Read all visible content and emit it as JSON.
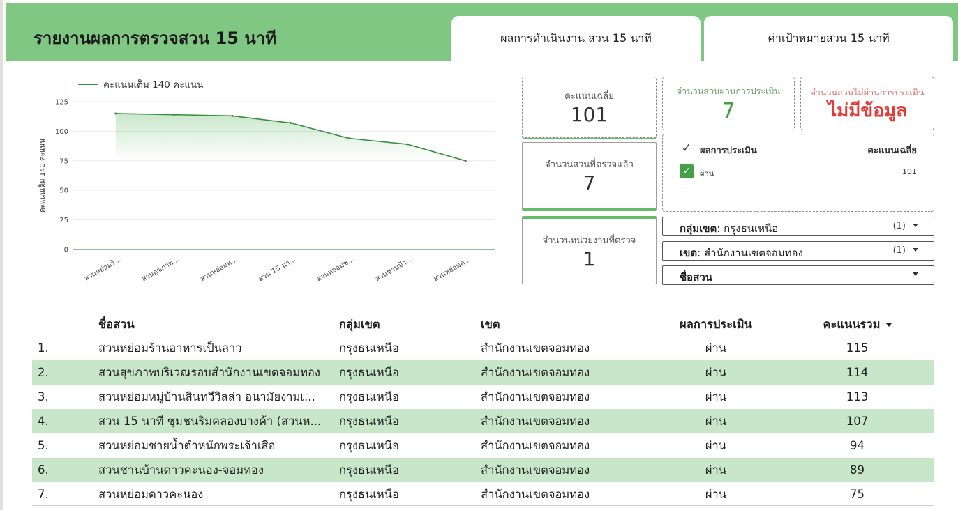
{
  "header": {
    "title": "รายงานผลการตรวจสวน 15 นาที",
    "tabs": [
      {
        "label": "ผลการดำเนินงาน สวน 15 นาที"
      },
      {
        "label": "ค่าเป้าหมายสวน 15 นาที"
      }
    ]
  },
  "colors": {
    "header_bg": "#81c784",
    "line": "#388e3c",
    "row_alt": "#c8e6c9",
    "pass_value": "#43a047",
    "fail_value": "#e53935"
  },
  "chart_data": {
    "type": "area",
    "legend": "คะแนนเต็ม 140 คะแนน",
    "ylabel": "คะแนนเต็ม 140 คะแนน",
    "ylim": [
      0,
      125
    ],
    "yticks": [
      "0",
      "25",
      "50",
      "75",
      "100",
      "125"
    ],
    "categories": [
      "สวนหย่อมร้...",
      "สวนสุขภาพ...",
      "สวนหย่อมห...",
      "สวน 15 นา...",
      "สวนหย่อมช...",
      "สวนชานบ้า...",
      "สวนหย่อมด..."
    ],
    "series": [
      {
        "name": "คะแนนเต็ม 140 คะแนน",
        "values": [
          115,
          114,
          113,
          107,
          94,
          89,
          75
        ]
      }
    ],
    "grid": true,
    "legend_position": "top-left"
  },
  "scorecards": {
    "avg": {
      "label": "คะแนนเฉลี่ย",
      "value": "101"
    },
    "parks_checked": {
      "label": "จำนวนสวนที่ตรวจแล้ว",
      "value": "7"
    },
    "units_checked": {
      "label": "จำนวนหน่วยงานที่ตรวจ",
      "value": "1"
    },
    "passed": {
      "label": "จำนวนสวนผ่านการประเมิน",
      "value": "7"
    },
    "failed": {
      "label": "จำนวนสวนไม่ผ่านการประเมิน",
      "value": "ไม่มีข้อมูล"
    }
  },
  "mini_table": {
    "headers": {
      "result": "ผลการประเมิน",
      "avg": "คะแนนเฉลี่ย"
    },
    "rows": [
      {
        "result": "ผ่าน",
        "avg": "101"
      }
    ]
  },
  "filters": [
    {
      "name": "กลุ่มเขต",
      "value": ": กรุงธนเหนือ",
      "count": "(1)"
    },
    {
      "name": "เขต",
      "value": ": สำนักงานเขตจอมทอง",
      "count": "(1)"
    },
    {
      "name": "ชื่อสวน",
      "value": "",
      "count": ""
    }
  ],
  "table": {
    "headers": {
      "name": "ชื่อสวน",
      "group": "กลุ่มเขต",
      "district": "เขต",
      "result": "ผลการประเมิน",
      "score": "คะแนนรวม"
    },
    "rows": [
      {
        "idx": "1.",
        "name": "สวนหย่อมร้านอาหารเป็นลาว",
        "group": "กรุงธนเหนือ",
        "district": "สำนักงานเขตจอมทอง",
        "result": "ผ่าน",
        "score": "115"
      },
      {
        "idx": "2.",
        "name": "สวนสุขภาพบริเวณรอบสำนักงานเขตจอมทอง",
        "group": "กรุงธนเหนือ",
        "district": "สำนักงานเขตจอมทอง",
        "result": "ผ่าน",
        "score": "114"
      },
      {
        "idx": "3.",
        "name": "สวนหย่อมหมู่บ้านสินทวีวิลล่า อนามัยงามเ...",
        "group": "กรุงธนเหนือ",
        "district": "สำนักงานเขตจอมทอง",
        "result": "ผ่าน",
        "score": "113"
      },
      {
        "idx": "4.",
        "name": "สวน 15 นาที ชุมชนริมคลองบางค้า (สวนห...",
        "group": "กรุงธนเหนือ",
        "district": "สำนักงานเขตจอมทอง",
        "result": "ผ่าน",
        "score": "107"
      },
      {
        "idx": "5.",
        "name": "สวนหย่อมชายน้ำตำหนักพระเจ้าเสือ",
        "group": "กรุงธนเหนือ",
        "district": "สำนักงานเขตจอมทอง",
        "result": "ผ่าน",
        "score": "94"
      },
      {
        "idx": "6.",
        "name": "สวนชานบ้านดาวคะนอง-จอมทอง",
        "group": "กรุงธนเหนือ",
        "district": "สำนักงานเขตจอมทอง",
        "result": "ผ่าน",
        "score": "89"
      },
      {
        "idx": "7.",
        "name": "สวนหย่อมดาวคะนอง",
        "group": "กรุงธนเหนือ",
        "district": "สำนักงานเขตจอมทอง",
        "result": "ผ่าน",
        "score": "75"
      }
    ]
  }
}
